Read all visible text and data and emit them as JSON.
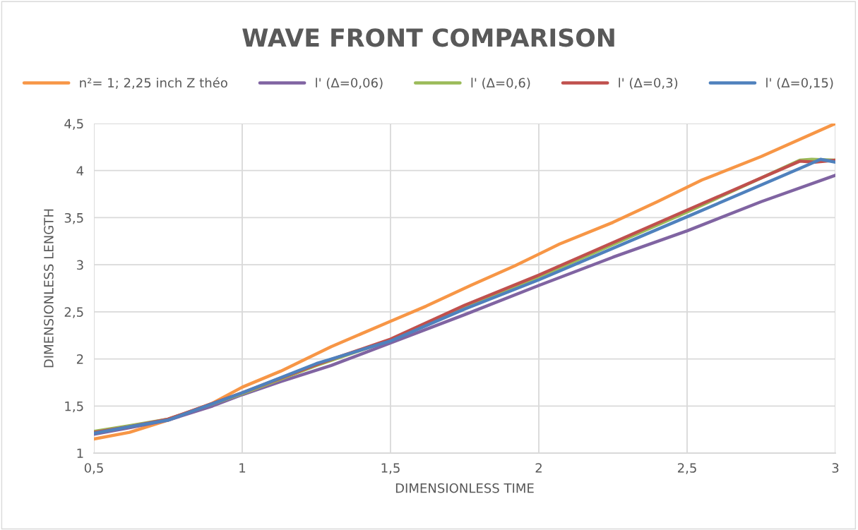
{
  "chart_data": {
    "type": "line",
    "title": "WAVE FRONT COMPARISON",
    "xlabel": "DIMENSIONLESS TIME",
    "ylabel": "DIMENSIONLESS LENGTH",
    "xlim": [
      0.5,
      3
    ],
    "ylim": [
      1,
      4.5
    ],
    "xticks": [
      {
        "value": 0.5,
        "label": "0,5"
      },
      1,
      {
        "value": 1.5,
        "label": "1,5"
      },
      2,
      {
        "value": 2.5,
        "label": "2,5"
      },
      3
    ],
    "yticks": [
      1,
      {
        "value": 1.5,
        "label": "1,5"
      },
      2,
      {
        "value": 2.5,
        "label": "2,5"
      },
      3,
      {
        "value": 3.5,
        "label": "3,5"
      },
      4,
      {
        "value": 4.5,
        "label": "4,5"
      }
    ],
    "grid": true,
    "legend": "top",
    "marker": "none",
    "line_style": "solid",
    "series": [
      {
        "name": "n²= 1; 2,25 inch Z théo",
        "color": "#f79646",
        "x": [
          0.5,
          0.62,
          0.75,
          0.9,
          1,
          1.13,
          1.3,
          1.5,
          1.62,
          1.77,
          1.92,
          2.07,
          2.25,
          2.4,
          2.55,
          2.75,
          3
        ],
        "values": [
          1.15,
          1.22,
          1.35,
          1.53,
          1.7,
          1.87,
          2.13,
          2.4,
          2.56,
          2.78,
          2.99,
          3.22,
          3.45,
          3.67,
          3.9,
          4.15,
          4.5
        ]
      },
      {
        "name": "l' (Δ=0,06)",
        "color": "#8064a2",
        "x": [
          0.5,
          0.62,
          0.75,
          0.9,
          1,
          1.13,
          1.3,
          1.5,
          1.75,
          2,
          2.25,
          2.5,
          2.75,
          3
        ],
        "values": [
          1.2,
          1.27,
          1.35,
          1.5,
          1.62,
          1.76,
          1.93,
          2.17,
          2.47,
          2.78,
          3.08,
          3.36,
          3.67,
          3.95
        ]
      },
      {
        "name": "l' (Δ=0,6)",
        "color": "#9bbb59",
        "x": [
          0.5,
          0.62,
          0.75,
          1,
          1.25,
          1.5,
          1.75,
          2,
          2.5,
          2.88,
          2.92,
          3
        ],
        "values": [
          1.23,
          1.29,
          1.36,
          1.63,
          1.93,
          2.2,
          2.55,
          2.87,
          3.56,
          4.11,
          4.12,
          4.11
        ]
      },
      {
        "name": "l' (Δ=0,3)",
        "color": "#c0504d",
        "x": [
          0.5,
          0.62,
          0.75,
          1,
          1.25,
          1.5,
          1.75,
          2,
          2.5,
          2.88,
          2.93,
          3
        ],
        "values": [
          1.22,
          1.28,
          1.36,
          1.64,
          1.94,
          2.21,
          2.57,
          2.89,
          3.58,
          4.1,
          4.09,
          4.11
        ]
      },
      {
        "name": "l' (Δ=0,15)",
        "color": "#4f81bd",
        "x": [
          0.5,
          0.62,
          0.75,
          1,
          1.25,
          1.5,
          1.75,
          2,
          2.5,
          2.9,
          2.95,
          3
        ],
        "values": [
          1.21,
          1.28,
          1.35,
          1.64,
          1.95,
          2.19,
          2.53,
          2.84,
          3.51,
          4.05,
          4.12,
          4.09
        ]
      }
    ]
  }
}
